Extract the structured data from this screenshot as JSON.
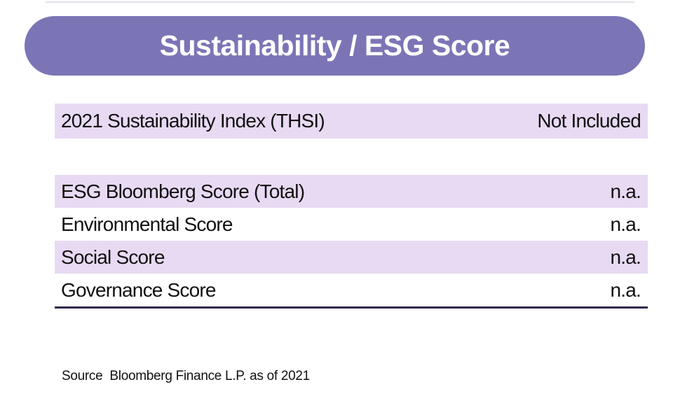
{
  "header": {
    "title": "Sustainability / ESG Score",
    "background_color": "#7B75B6",
    "text_color": "#FFFFFF"
  },
  "table": {
    "row_highlight_color": "#E8DAF3",
    "bottom_border_color": "#32274E",
    "index_row": {
      "label": "2021 Sustainability Index (THSI)",
      "value": "Not Included"
    },
    "score_rows": [
      {
        "label": "ESG Bloomberg Score (Total)",
        "value": "n.a."
      },
      {
        "label": "Environmental Score",
        "value": "n.a."
      },
      {
        "label": "Social Score",
        "value": "n.a."
      },
      {
        "label": "Governance Score",
        "value": "n.a."
      }
    ]
  },
  "footer": {
    "source_label": "Source",
    "source_text": "Bloomberg Finance L.P. as of 2021"
  }
}
